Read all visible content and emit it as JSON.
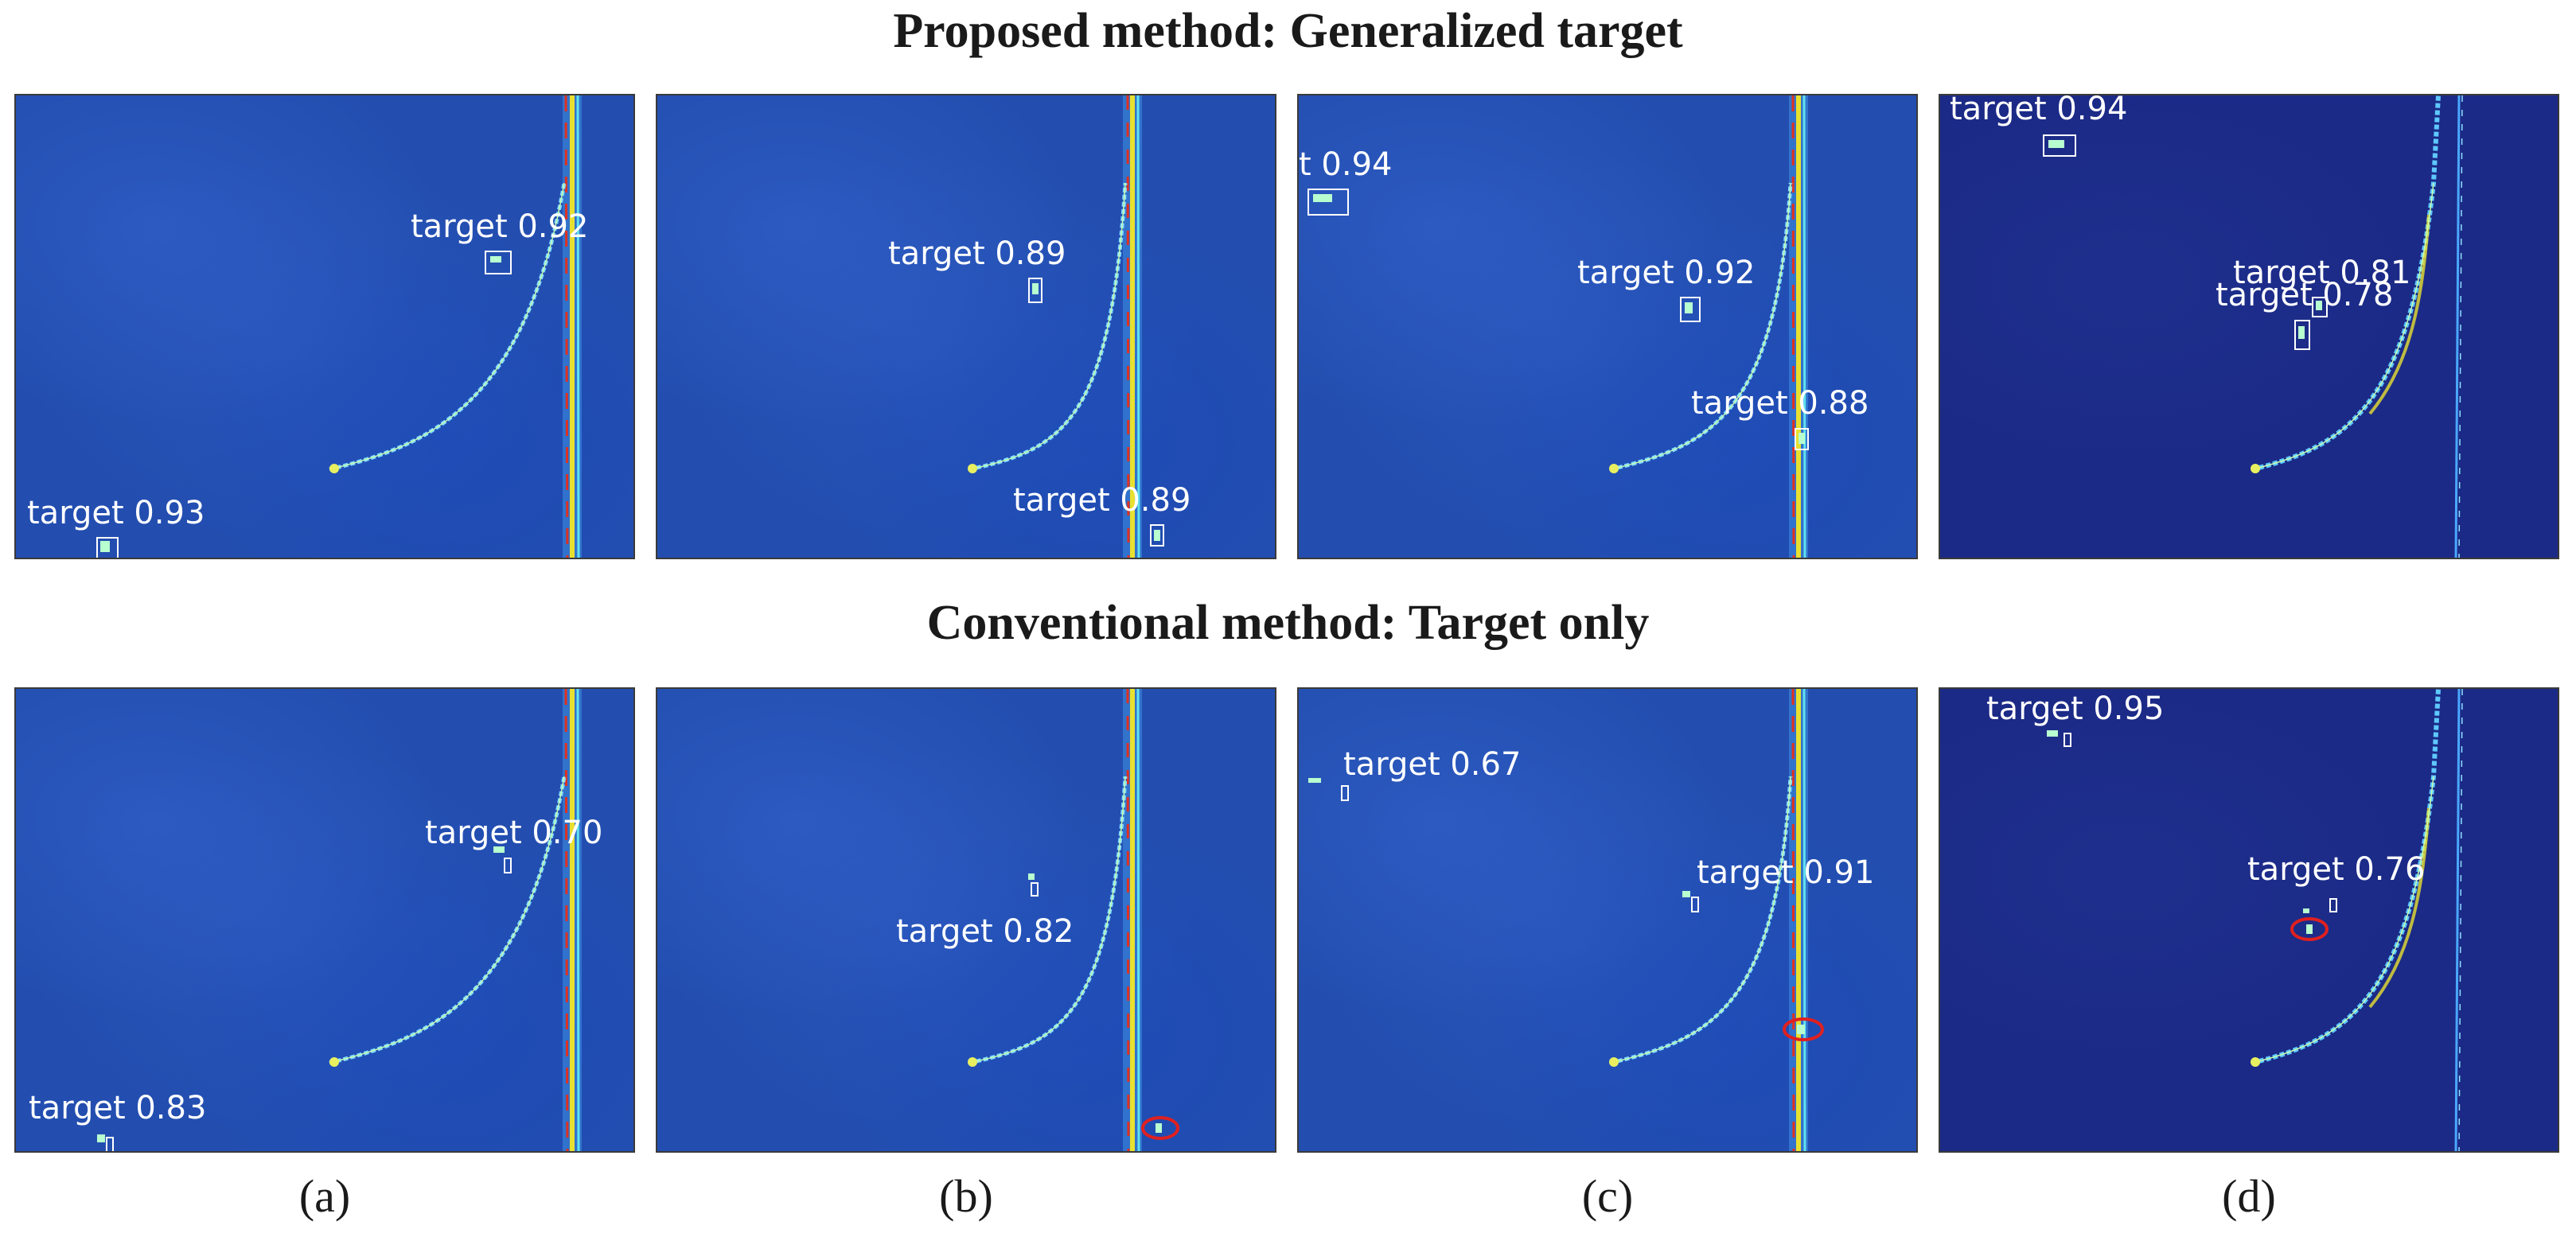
{
  "headings": {
    "top": "Proposed method: Generalized target",
    "bottom": "Conventional method: Target only"
  },
  "captions": [
    "(a)",
    "(b)",
    "(c)",
    "(d)"
  ],
  "colors": {
    "background": "#234eb0",
    "background_dark": "#1b2a86",
    "box": "#ffffff",
    "miss_marker": "#e02020",
    "line_yellow": "#e8e030",
    "line_red": "#e03020",
    "line_cyan": "#60e0f0"
  },
  "panels": {
    "proposed": [
      {
        "detections": [
          {
            "label": "target 0.92",
            "score": 0.92
          },
          {
            "label": "target 0.93",
            "score": 0.93
          }
        ]
      },
      {
        "detections": [
          {
            "label": "target 0.89",
            "score": 0.89
          },
          {
            "label": "target 0.89",
            "score": 0.89
          }
        ]
      },
      {
        "detections": [
          {
            "label": "t 0.94",
            "score": 0.94
          },
          {
            "label": "target 0.92",
            "score": 0.92
          },
          {
            "label": "target 0.88",
            "score": 0.88
          }
        ]
      },
      {
        "detections": [
          {
            "label": "target 0.94",
            "score": 0.94
          },
          {
            "label": "target 0.81",
            "score": 0.81
          },
          {
            "label": "target 0.78",
            "score": 0.78
          }
        ]
      }
    ],
    "conventional": [
      {
        "detections": [
          {
            "label": "target 0.70",
            "score": 0.7
          },
          {
            "label": "target 0.83",
            "score": 0.83
          }
        ]
      },
      {
        "detections": [
          {
            "label": "target 0.82",
            "score": 0.82
          }
        ]
      },
      {
        "detections": [
          {
            "label": "target 0.67",
            "score": 0.67
          },
          {
            "label": "target 0.91",
            "score": 0.91
          }
        ]
      },
      {
        "detections": [
          {
            "label": "target 0.95",
            "score": 0.95
          },
          {
            "label": "target 0.76",
            "score": 0.76
          }
        ]
      }
    ]
  }
}
